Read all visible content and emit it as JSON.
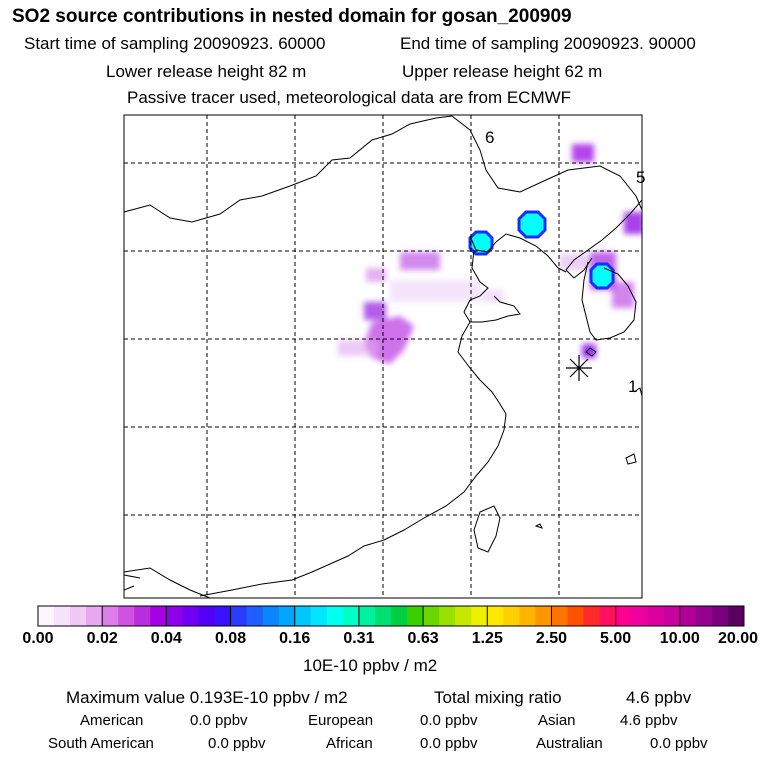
{
  "header": {
    "title": "SO2 source contributions in nested domain for gosan_200909",
    "start_time": "Start time of sampling 20090923. 60000",
    "end_time": "End time of sampling 20090923. 90000",
    "lower_release": "Lower release height   82 m",
    "upper_release": "Upper release height   62 m",
    "note": "Passive tracer used, meteorological data are from ECMWF"
  },
  "map": {
    "grid_labels": [
      "6",
      "5",
      "1"
    ]
  },
  "colorbar": {
    "tick_labels": [
      "0.00",
      "0.02",
      "0.04",
      "0.08",
      "0.16",
      "0.31",
      "0.63",
      "1.25",
      "2.50",
      "5.00",
      "10.00",
      "20.00"
    ],
    "colors": [
      "#fdf6fd",
      "#f9e2fb",
      "#f1c8f6",
      "#e9a6f1",
      "#dd7de9",
      "#cf52e2",
      "#bc2de0",
      "#a600e6",
      "#8e00ee",
      "#7300f4",
      "#5500f6",
      "#3a10ff",
      "#2a3dff",
      "#1f5fff",
      "#0a86ff",
      "#00a6ff",
      "#00c8ff",
      "#00e6ff",
      "#00ffee",
      "#00ffc8",
      "#00f0a0",
      "#00e070",
      "#00d040",
      "#3ad000",
      "#6ad800",
      "#9ae000",
      "#c8e800",
      "#eef000",
      "#ffe800",
      "#ffd000",
      "#ffb400",
      "#ff9600",
      "#ff7400",
      "#ff5000",
      "#ff2a2a",
      "#ff1060",
      "#ff0090",
      "#f000a0",
      "#dd00a0",
      "#c800a0",
      "#b00098",
      "#980090",
      "#7a0080",
      "#5a0060"
    ],
    "unit": "10E-10 ppbv / m2"
  },
  "stats": {
    "max_label": "Maximum value  0.193E-10 ppbv / m2",
    "total_label": "Total mixing ratio",
    "total_value": "4.6 ppbv",
    "american_label": "American",
    "american_value": "0.0 ppbv",
    "european_label": "European",
    "european_value": "0.0 ppbv",
    "asian_label": "Asian",
    "asian_value": "4.6 ppbv",
    "south_american_label": "South American",
    "south_american_value": "0.0 ppbv",
    "african_label": "African",
    "african_value": "0.0 ppbv",
    "australian_label": "Australian",
    "australian_value": "0.0 ppbv"
  }
}
